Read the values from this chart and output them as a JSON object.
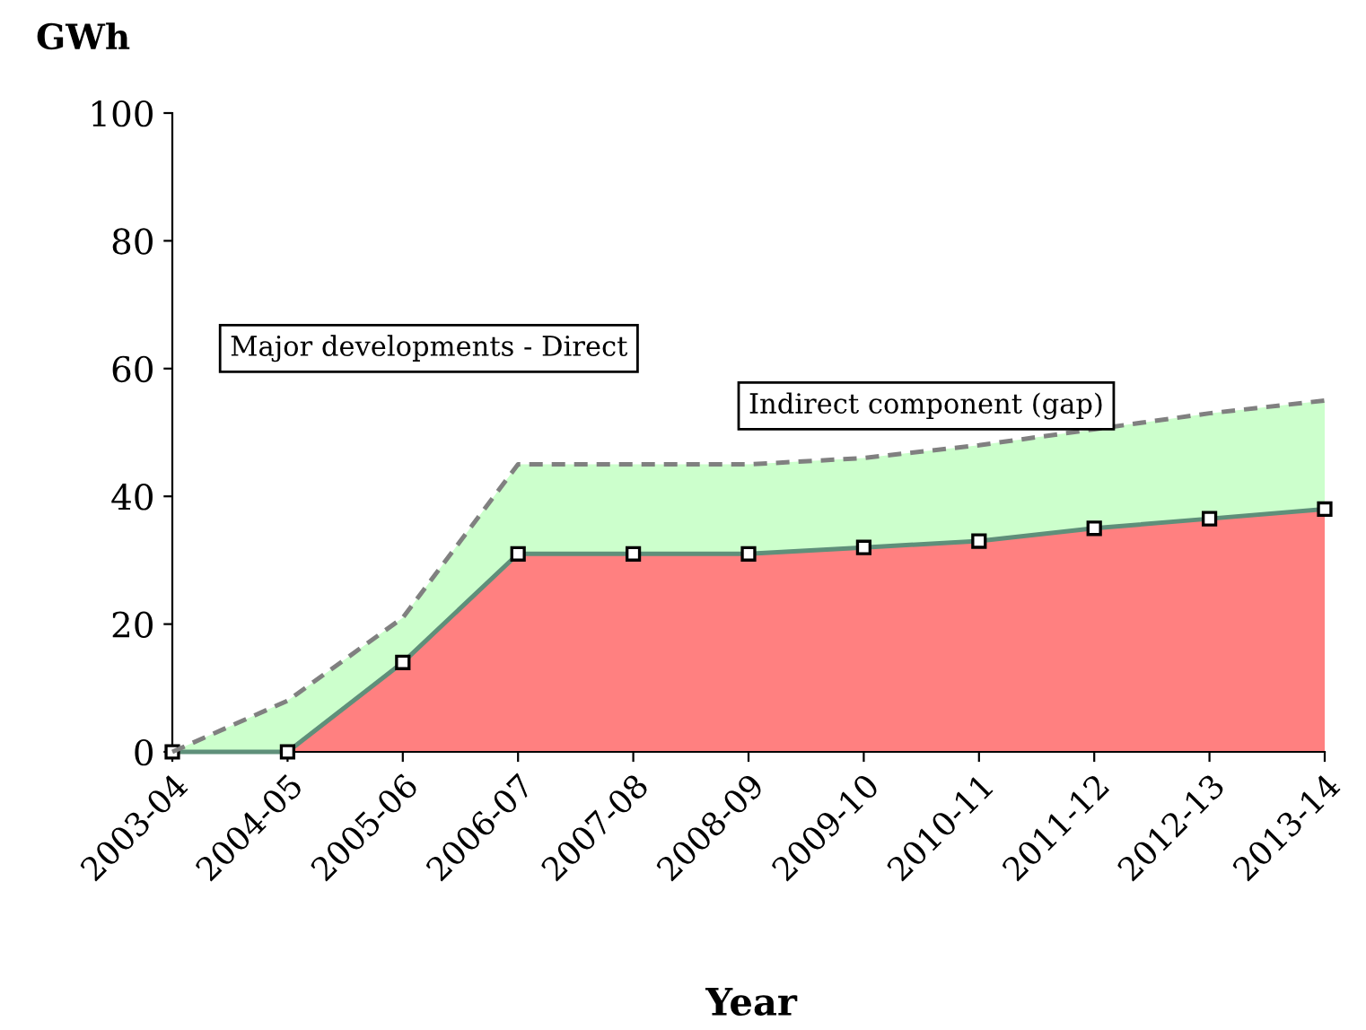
{
  "chart_data": {
    "type": "area",
    "stacked": true,
    "xlabel": "Year",
    "ylabel": "GWh",
    "categories": [
      "2003-04",
      "2004-05",
      "2005-06",
      "2006-07",
      "2007-08",
      "2008-09",
      "2009-10",
      "2010-11",
      "2011-12",
      "2012-13",
      "2013-14"
    ],
    "series": [
      {
        "name": "Major developments - Direct",
        "color": "#ff8080",
        "marker": "square",
        "line_style": "solid",
        "values": [
          0,
          0,
          14,
          31,
          31,
          31,
          32,
          33,
          35,
          36.5,
          38
        ]
      },
      {
        "name": "Indirect component (gap)",
        "color": "#ccffcc",
        "marker": "none",
        "line_style": "dashed",
        "values": [
          0,
          8,
          7,
          14,
          14,
          14,
          14,
          15,
          15.5,
          16.5,
          17
        ]
      }
    ],
    "ylim": [
      0,
      100
    ],
    "yticks": [
      0,
      20,
      40,
      60,
      80,
      100
    ],
    "grid": false,
    "legend": false
  }
}
